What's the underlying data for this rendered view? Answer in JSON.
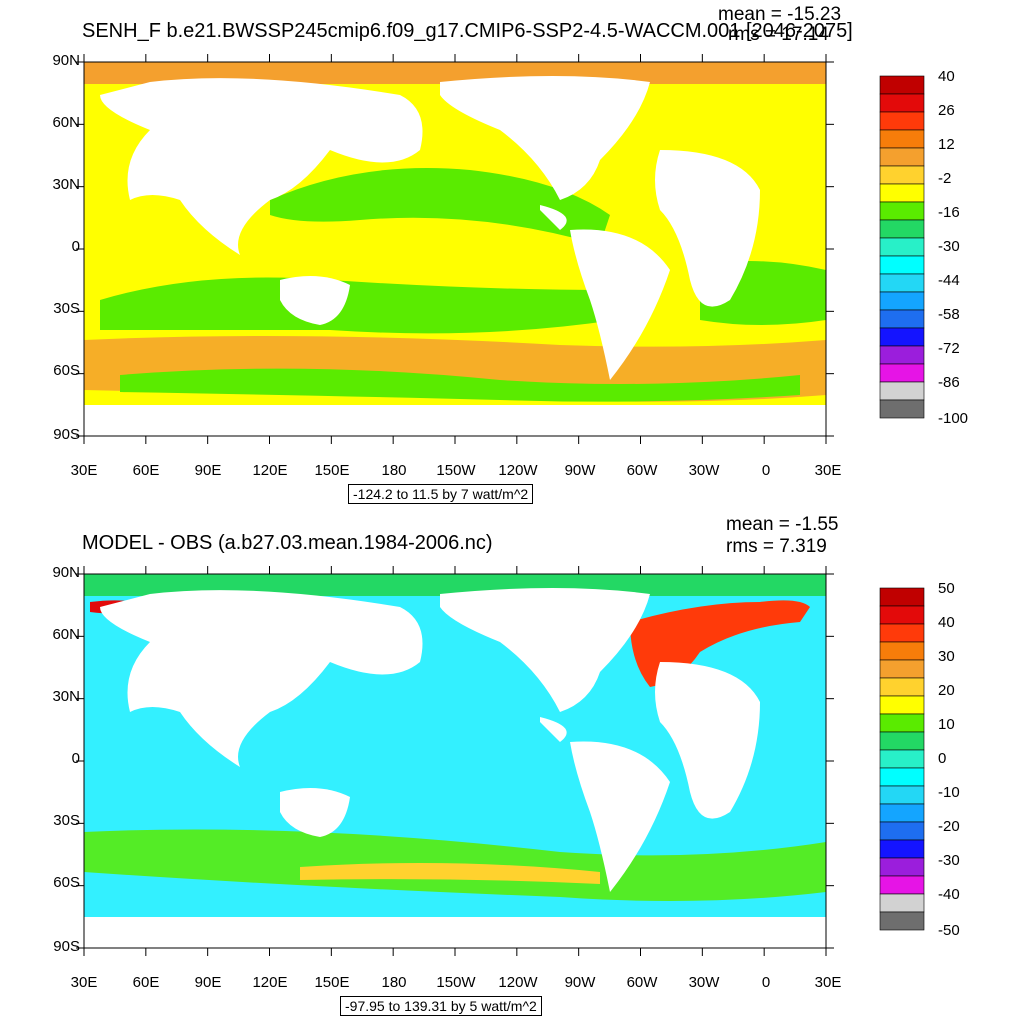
{
  "colors": {
    "land": "#ffffff",
    "frame": "#000000"
  },
  "chart_data": [
    {
      "type": "heatmap",
      "title": "SENH_F b.e21.BWSSP245cmip6.f09_g17.CMIP6-SSP2-4.5-WACCM.001 [2046-2075]",
      "mean_label": "mean = -15.23",
      "rms_label": "rms = 17.14",
      "range_label": "-124.2 to 11.5 by 7 watt/m^2",
      "x_tick_labels": [
        "30E",
        "60E",
        "90E",
        "120E",
        "150E",
        "180",
        "150W",
        "120W",
        "90W",
        "60W",
        "30W",
        "0",
        "30E"
      ],
      "y_tick_labels": [
        "90N",
        "60N",
        "30N",
        "0",
        "30S",
        "60S",
        "90S"
      ],
      "colorbar_labels": [
        "40",
        "26",
        "12",
        "-2",
        "-16",
        "-30",
        "-44",
        "-58",
        "-72",
        "-86",
        "-100"
      ],
      "colorbar_colors": [
        "#c00000",
        "#e30a0a",
        "#ff3a0a",
        "#f77d0a",
        "#f4a02e",
        "#ffd22e",
        "#ffff00",
        "#5aeb00",
        "#23d864",
        "#28f0c8",
        "#00ffff",
        "#23d7f5",
        "#14a5ff",
        "#1e6ef0",
        "#1414ff",
        "#9b1edc",
        "#e614e6",
        "#d2d2d2",
        "#6e6e6e"
      ],
      "ocean_fill": "#ffff00",
      "ylim": [
        -90,
        90
      ]
    },
    {
      "type": "heatmap",
      "title": "MODEL - OBS (a.b27.03.mean.1984-2006.nc)",
      "mean_label": "mean = -1.55",
      "rms_label": "rms = 7.319",
      "range_label": "-97.95 to 139.31 by 5 watt/m^2",
      "x_tick_labels": [
        "30E",
        "60E",
        "90E",
        "120E",
        "150E",
        "180",
        "150W",
        "120W",
        "90W",
        "60W",
        "30W",
        "0",
        "30E"
      ],
      "y_tick_labels": [
        "90N",
        "60N",
        "30N",
        "0",
        "30S",
        "60S",
        "90S"
      ],
      "colorbar_labels": [
        "50",
        "40",
        "30",
        "20",
        "10",
        "0",
        "-10",
        "-20",
        "-30",
        "-40",
        "-50"
      ],
      "colorbar_colors": [
        "#c00000",
        "#e30a0a",
        "#ff3a0a",
        "#f77d0a",
        "#f4a02e",
        "#ffd22e",
        "#ffff00",
        "#5aeb00",
        "#23d864",
        "#28f0c8",
        "#00ffff",
        "#23d7f5",
        "#14a5ff",
        "#1e6ef0",
        "#1414ff",
        "#9b1edc",
        "#e614e6",
        "#d2d2d2",
        "#6e6e6e"
      ],
      "ocean_fill": "#33f0ff",
      "ylim": [
        -90,
        90
      ]
    }
  ]
}
